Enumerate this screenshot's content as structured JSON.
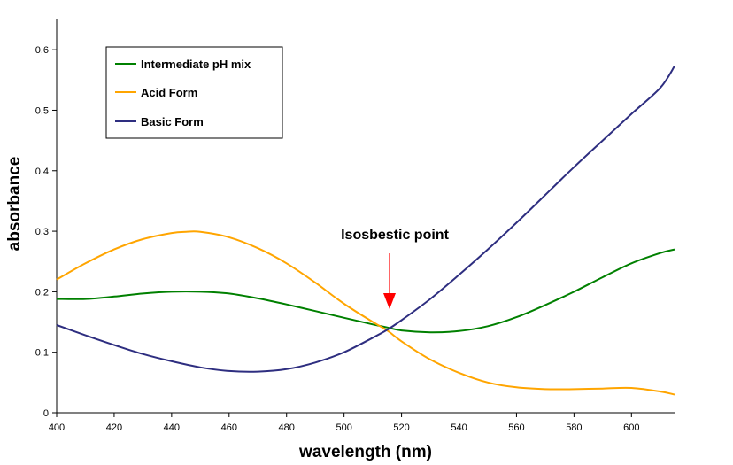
{
  "chart_data": {
    "type": "line",
    "xlabel": "wavelength (nm)",
    "ylabel": "absorbance",
    "xlim": [
      400,
      615
    ],
    "ylim": [
      0,
      0.65
    ],
    "x_ticks": [
      400,
      420,
      440,
      460,
      480,
      500,
      520,
      540,
      560,
      580,
      600
    ],
    "x_tick_labels": [
      "400",
      "420",
      "440",
      "460",
      "480",
      "500",
      "520",
      "540",
      "560",
      "580",
      "600"
    ],
    "y_ticks": [
      0,
      0.1,
      0.2,
      0.3,
      0.4,
      0.5,
      0.6
    ],
    "y_tick_labels": [
      "0",
      "0,1",
      "0,2",
      "0,3",
      "0,4",
      "0,5",
      "0,6"
    ],
    "grid": false,
    "legend_position": "top-left",
    "series": [
      {
        "name": "Intermediate pH mix",
        "color": "#008000",
        "x": [
          400,
          410,
          420,
          430,
          440,
          450,
          460,
          470,
          480,
          490,
          500,
          510,
          515,
          520,
          530,
          540,
          550,
          560,
          570,
          580,
          590,
          600,
          610,
          615
        ],
        "y": [
          0.188,
          0.188,
          0.192,
          0.197,
          0.2,
          0.2,
          0.197,
          0.189,
          0.179,
          0.168,
          0.157,
          0.146,
          0.141,
          0.136,
          0.133,
          0.135,
          0.143,
          0.158,
          0.178,
          0.2,
          0.224,
          0.247,
          0.264,
          0.27
        ]
      },
      {
        "name": "Acid Form",
        "color": "#FFA500",
        "x": [
          400,
          410,
          420,
          430,
          440,
          445,
          450,
          460,
          470,
          480,
          490,
          500,
          510,
          515,
          520,
          530,
          540,
          550,
          560,
          570,
          580,
          590,
          600,
          610,
          615
        ],
        "y": [
          0.22,
          0.247,
          0.27,
          0.287,
          0.297,
          0.299,
          0.299,
          0.29,
          0.272,
          0.247,
          0.215,
          0.18,
          0.15,
          0.136,
          0.118,
          0.088,
          0.066,
          0.05,
          0.042,
          0.039,
          0.039,
          0.04,
          0.041,
          0.035,
          0.03
        ]
      },
      {
        "name": "Basic Form",
        "color": "#2E2E80",
        "x": [
          400,
          410,
          420,
          430,
          440,
          450,
          460,
          470,
          480,
          490,
          500,
          510,
          515,
          520,
          530,
          540,
          550,
          560,
          570,
          580,
          590,
          600,
          610,
          615
        ],
        "y": [
          0.145,
          0.128,
          0.112,
          0.097,
          0.085,
          0.075,
          0.069,
          0.068,
          0.072,
          0.083,
          0.1,
          0.124,
          0.137,
          0.153,
          0.188,
          0.228,
          0.27,
          0.314,
          0.36,
          0.406,
          0.45,
          0.494,
          0.537,
          0.573
        ]
      }
    ],
    "annotations": [
      {
        "text": "Isosbestic point",
        "x": 516,
        "y": 0.137,
        "color": "#FF0000"
      }
    ]
  }
}
